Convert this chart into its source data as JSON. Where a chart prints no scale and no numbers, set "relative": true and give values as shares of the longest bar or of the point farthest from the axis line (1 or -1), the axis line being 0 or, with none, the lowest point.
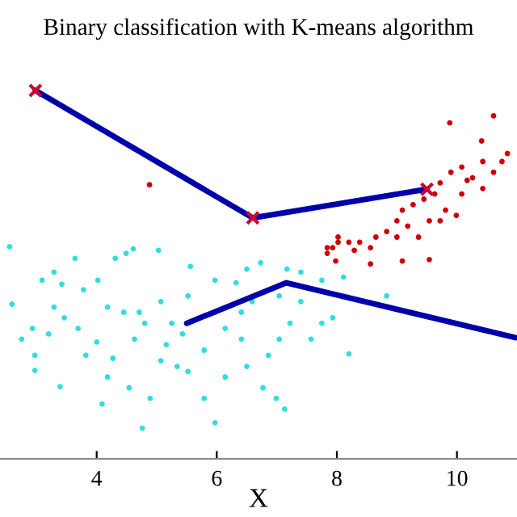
{
  "chart_data": {
    "type": "scatter",
    "title": "Binary classification with K-means algorithm",
    "xlabel": "X",
    "relative": true,
    "xlim": [
      2.39,
      11
    ],
    "xticks": [
      4,
      6,
      8,
      10
    ],
    "tick_labels": "x",
    "grid": false,
    "legend": false,
    "series": [
      {
        "color": "#33dddd",
        "marker": "circle",
        "x": [
          2.55,
          2.59,
          3.09,
          3.29,
          3.42,
          3.64,
          3.78,
          4.02,
          4.31,
          4.49,
          4.61,
          5.03,
          2.75,
          2.97,
          2.97,
          3.39,
          4.09,
          4.76,
          5.97,
          7.13,
          6.99,
          6.77,
          6.14,
          5.07,
          5.34,
          5.52,
          5.79,
          4.54,
          4.89,
          4.27,
          3.82,
          4.0,
          4.63,
          4.8,
          4.71,
          5.07,
          5.25,
          5.52,
          5.56,
          5.97,
          6.32,
          6.5,
          6.73,
          7.17,
          7.4,
          7.75,
          8.11,
          7.93,
          7.57,
          8.2,
          8.83,
          7.22,
          7.04,
          6.86,
          6.41,
          6.14,
          5.79,
          5.43,
          5.16,
          4.45,
          4.18,
          3.69,
          3.46,
          3.29,
          3.2,
          2.93,
          5.97,
          6.41,
          6.59,
          7.04,
          7.4,
          7.75,
          6.5,
          4.18
        ],
        "values": [
          0.576,
          0.42,
          0.485,
          0.507,
          0.474,
          0.544,
          0.459,
          0.485,
          0.544,
          0.558,
          0.57,
          0.566,
          0.325,
          0.281,
          0.24,
          0.196,
          0.149,
          0.083,
          0.098,
          0.135,
          0.164,
          0.193,
          0.222,
          0.266,
          0.251,
          0.237,
          0.164,
          0.193,
          0.164,
          0.273,
          0.281,
          0.317,
          0.325,
          0.368,
          0.398,
          0.427,
          0.368,
          0.442,
          0.522,
          0.485,
          0.478,
          0.515,
          0.532,
          0.515,
          0.507,
          0.485,
          0.493,
          0.383,
          0.325,
          0.285,
          0.442,
          0.368,
          0.325,
          0.281,
          0.325,
          0.354,
          0.295,
          0.339,
          0.31,
          0.398,
          0.412,
          0.354,
          0.383,
          0.412,
          0.339,
          0.354,
          0.398,
          0.398,
          0.427,
          0.442,
          0.427,
          0.368,
          0.251,
          0.222
        ]
      },
      {
        "color": "#cc0000",
        "marker": "circle",
        "x": [
          10.61,
          9.88,
          10.41,
          10.84,
          10.75,
          10.43,
          10.08,
          10.61,
          10.17,
          9.9,
          9.72,
          9.63,
          9.45,
          9.27,
          9.09,
          9.81,
          10.08,
          10.43,
          10.26,
          9.54,
          9.18,
          9.0,
          8.83,
          8.65,
          8.56,
          8.2,
          7.93,
          7.84,
          9.72,
          9.36,
          9.99,
          4.88,
          7.84,
          8.02,
          7.98,
          8.29,
          9.0,
          8.56,
          9.09,
          9.54,
          8.02,
          8.38
        ],
        "values": [
          0.931,
          0.912,
          0.863,
          0.829,
          0.807,
          0.807,
          0.792,
          0.778,
          0.756,
          0.778,
          0.749,
          0.719,
          0.705,
          0.69,
          0.675,
          0.675,
          0.719,
          0.734,
          0.763,
          0.646,
          0.632,
          0.646,
          0.617,
          0.602,
          0.573,
          0.588,
          0.573,
          0.558,
          0.646,
          0.602,
          0.661,
          0.744,
          0.573,
          0.588,
          0.537,
          0.566,
          0.602,
          0.529,
          0.537,
          0.541,
          0.602,
          0.588
        ]
      },
      {
        "type": "line",
        "color": "#0000aa",
        "marker": "cross",
        "x": [
          2.98,
          6.6,
          9.5
        ],
        "values": [
          1.0,
          0.654,
          0.732
        ]
      },
      {
        "type": "line",
        "color": "#0000aa",
        "marker": "none",
        "x": [
          10.97,
          7.16,
          5.5
        ],
        "values": [
          0.329,
          0.478,
          0.368
        ]
      }
    ]
  }
}
